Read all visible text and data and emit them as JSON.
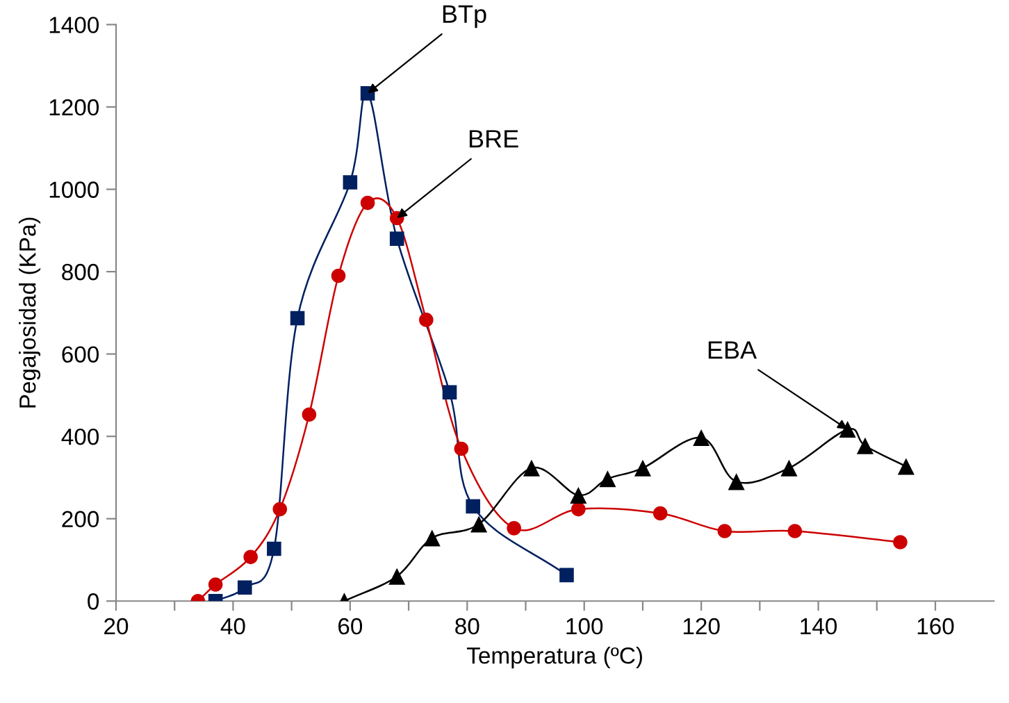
{
  "chart_data": {
    "type": "line",
    "xlabel": "Temperatura (ºC)",
    "ylabel": "Pegajosidad (KPa)",
    "xlim": [
      20,
      170
    ],
    "xticks": [
      20,
      {
        "value": 30,
        "label": null
      },
      40,
      {
        "value": 50,
        "label": null
      },
      60,
      {
        "value": 70,
        "label": null
      },
      80,
      {
        "value": 90,
        "label": null
      },
      100,
      {
        "value": 110,
        "label": null
      },
      120,
      {
        "value": 130,
        "label": null
      },
      140,
      {
        "value": 150,
        "label": null
      },
      160
    ],
    "ylim": [
      0,
      1400
    ],
    "yticks": [
      0,
      200,
      400,
      600,
      800,
      1000,
      1200,
      1400
    ],
    "grid": false,
    "legend": false,
    "line_style": "solid",
    "series": [
      {
        "color": "#002060",
        "marker": "square",
        "x": [
          37,
          42,
          47,
          51,
          60,
          63,
          68,
          77,
          81,
          97
        ],
        "values": [
          0,
          33,
          127,
          687,
          1017,
          1233,
          880,
          507,
          230,
          63
        ]
      },
      {
        "color": "#cc0000",
        "marker": "circle",
        "x": [
          34,
          37,
          43,
          48,
          53,
          58,
          63,
          68,
          73,
          79,
          88,
          99,
          113,
          124,
          136,
          154
        ],
        "values": [
          0,
          40,
          107,
          223,
          453,
          790,
          967,
          930,
          683,
          370,
          177,
          223,
          213,
          170,
          170,
          143
        ]
      },
      {
        "color": "#000000",
        "marker": "triangle",
        "x": [
          59,
          68,
          74,
          82,
          91,
          99,
          104,
          110,
          120,
          126,
          135,
          145,
          148,
          155
        ],
        "values": [
          0,
          60,
          153,
          187,
          323,
          257,
          297,
          323,
          397,
          290,
          323,
          417,
          377,
          327
        ]
      }
    ],
    "annotations": [
      {
        "text": "BTp",
        "x": 63,
        "y": 1233
      },
      {
        "text": "BRE",
        "x": 68,
        "y": 930
      },
      {
        "text": "EBA",
        "x": 145,
        "y": 417
      }
    ]
  }
}
